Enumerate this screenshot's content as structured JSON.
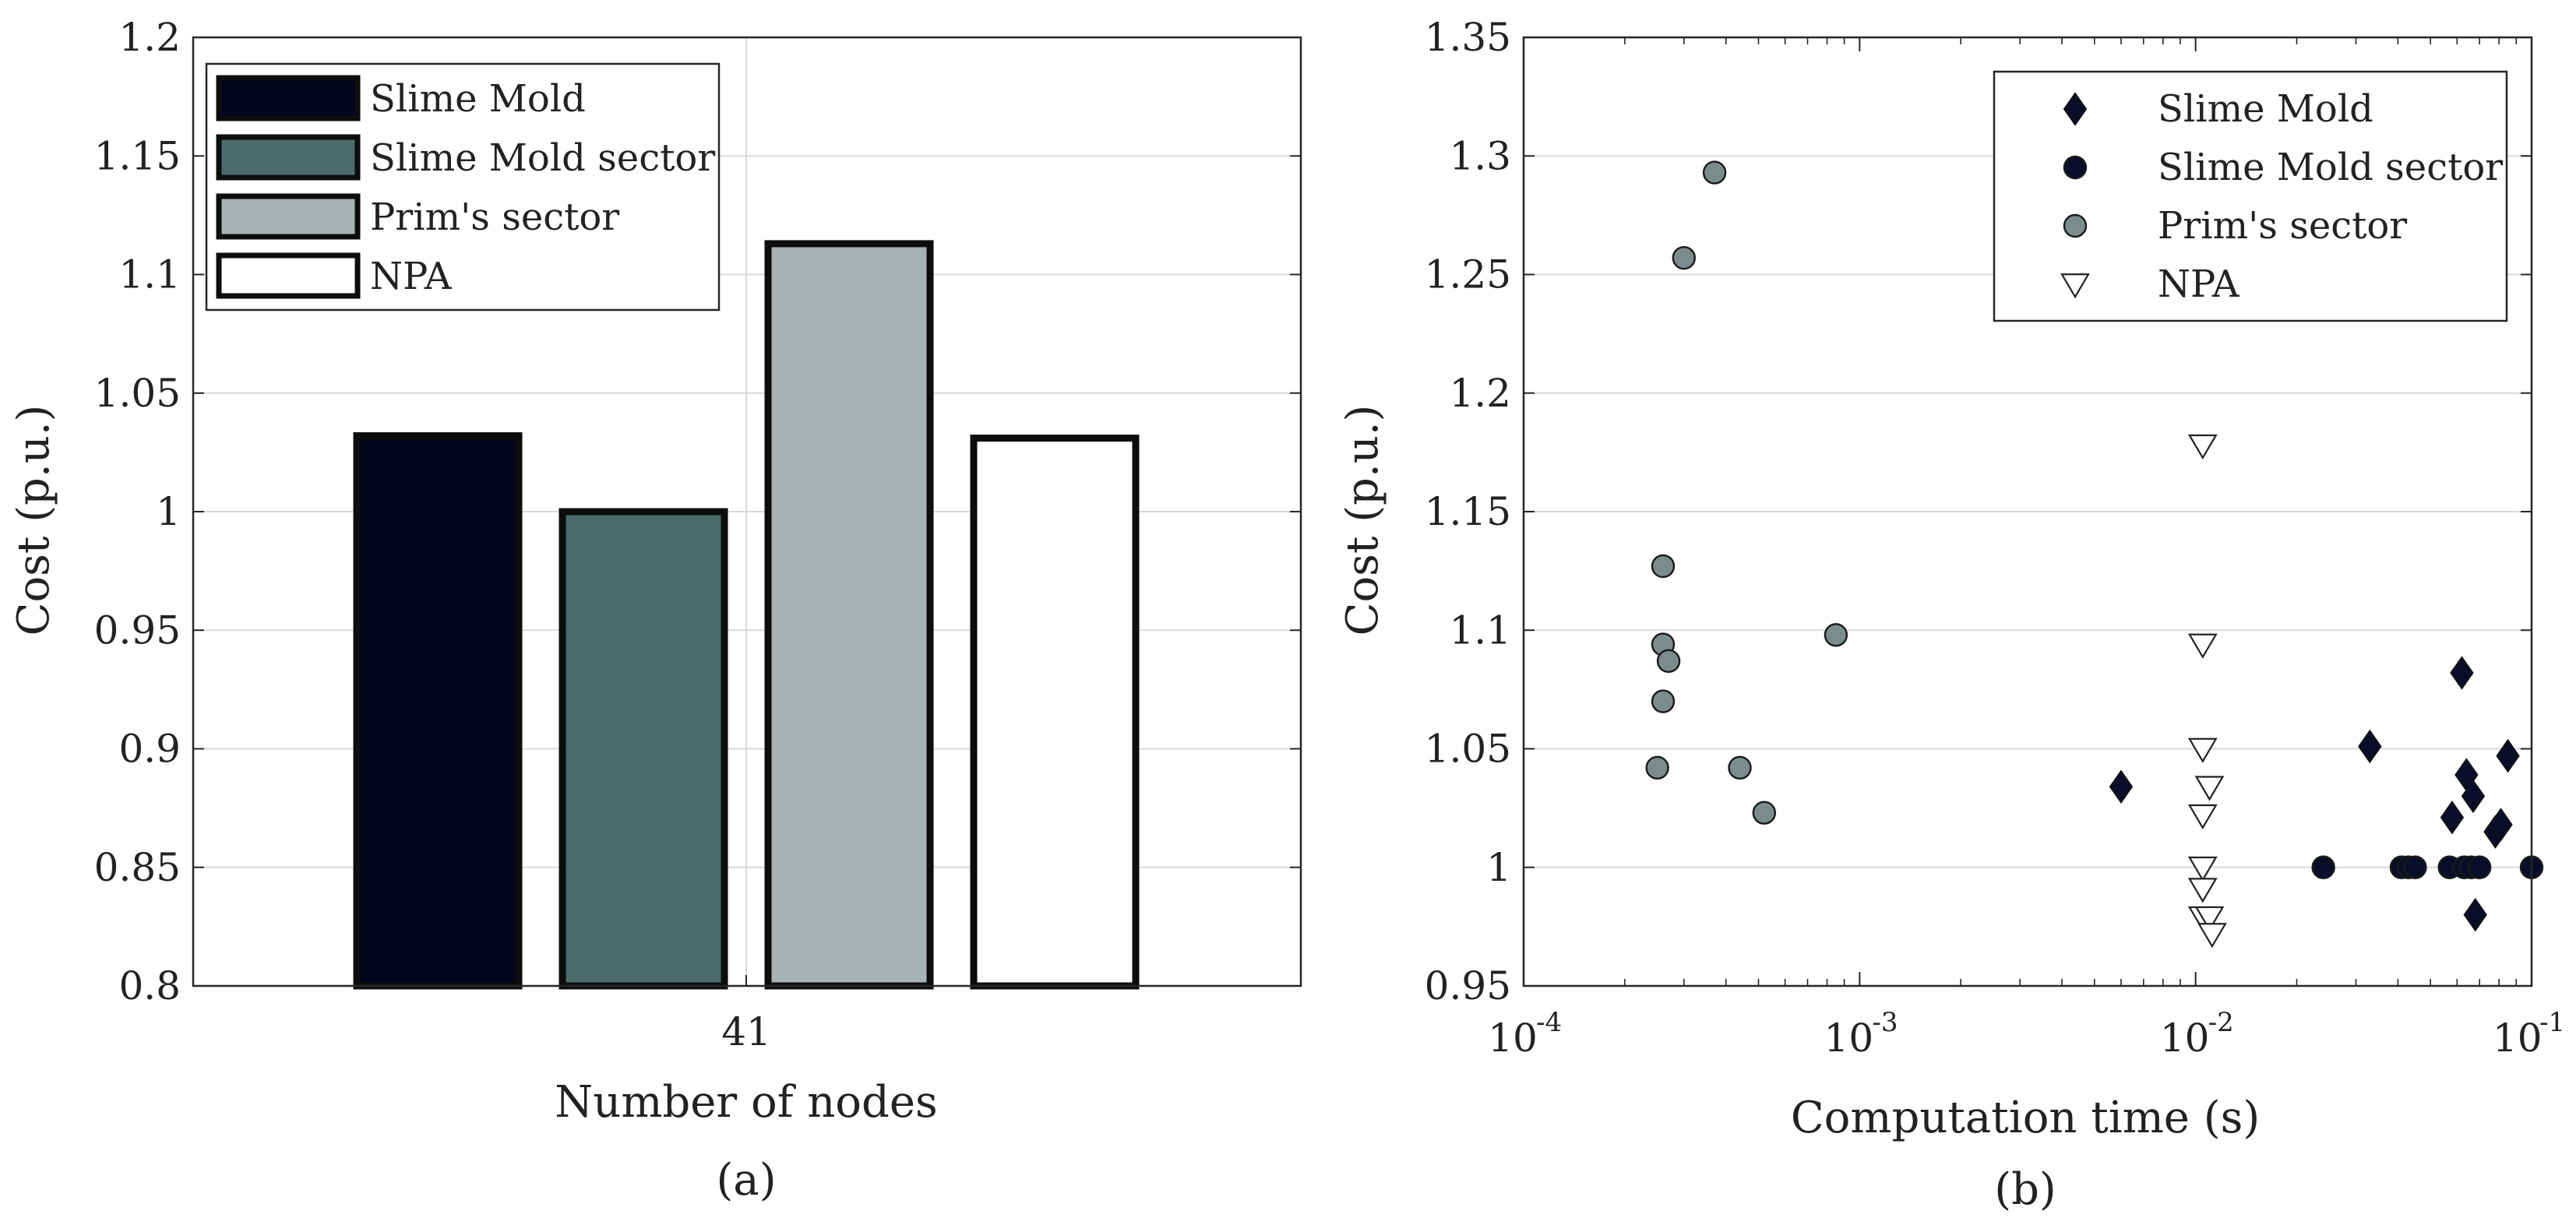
{
  "chart_data": [
    {
      "type": "bar",
      "panel_label": "(a)",
      "categories": [
        "41"
      ],
      "series": [
        {
          "name": "Slime Mold",
          "values": [
            1.032
          ],
          "color": "#03061c"
        },
        {
          "name": "Slime Mold sector",
          "values": [
            1.0
          ],
          "color": "#4b6b6a"
        },
        {
          "name": "Prim's sector",
          "values": [
            1.113
          ],
          "color": "#a7b3b2"
        },
        {
          "name": "NPA",
          "values": [
            1.031
          ],
          "color": "#ffffff"
        }
      ],
      "xlabel": "Number of nodes",
      "ylabel": "Cost (p.u.)",
      "ylim": [
        0.8,
        1.2
      ],
      "yticks": [
        "0.8",
        "0.85",
        "0.9",
        "0.95",
        "1",
        "1.05",
        "1.1",
        "1.15",
        "1.2"
      ],
      "ytick_values": [
        0.8,
        0.85,
        0.9,
        0.95,
        1.0,
        1.05,
        1.1,
        1.15,
        1.2
      ],
      "grid": true,
      "legend_position": "top-left"
    },
    {
      "type": "scatter",
      "panel_label": "(b)",
      "xscale": "log",
      "xlabel": "Computation time (s)",
      "ylabel": "Cost (p.u.)",
      "xlim": [
        0.0001,
        0.1
      ],
      "ylim": [
        0.95,
        1.35
      ],
      "xticks": [
        {
          "base": "10",
          "exp": "-4",
          "value": 0.0001
        },
        {
          "base": "10",
          "exp": "-3",
          "value": 0.001
        },
        {
          "base": "10",
          "exp": "-2",
          "value": 0.01
        },
        {
          "base": "10",
          "exp": "-1",
          "value": 0.1
        }
      ],
      "yticks": [
        "0.95",
        "1",
        "1.05",
        "1.1",
        "1.15",
        "1.2",
        "1.25",
        "1.3",
        "1.35"
      ],
      "ytick_values": [
        0.95,
        1.0,
        1.05,
        1.1,
        1.15,
        1.2,
        1.25,
        1.3,
        1.35
      ],
      "grid": true,
      "legend_position": "top-right",
      "series": [
        {
          "name": "Slime Mold",
          "marker": "diamond",
          "color": "#0a0d2a",
          "points": [
            [
              0.006,
              1.034
            ],
            [
              0.033,
              1.051
            ],
            [
              0.058,
              1.021
            ],
            [
              0.062,
              1.082
            ],
            [
              0.064,
              1.039
            ],
            [
              0.067,
              1.03
            ],
            [
              0.068,
              0.98
            ],
            [
              0.078,
              1.015
            ],
            [
              0.081,
              1.018
            ],
            [
              0.085,
              1.047
            ]
          ]
        },
        {
          "name": "Slime Mold sector",
          "marker": "circle",
          "color": "#0a0d2a",
          "points": [
            [
              0.024,
              1.0
            ],
            [
              0.041,
              1.0
            ],
            [
              0.043,
              1.0
            ],
            [
              0.045,
              1.0
            ],
            [
              0.057,
              1.0
            ],
            [
              0.063,
              1.0
            ],
            [
              0.066,
              1.0
            ],
            [
              0.07,
              1.0
            ],
            [
              0.1,
              1.0
            ]
          ]
        },
        {
          "name": "Prim's sector",
          "marker": "circle",
          "color": "#7a8c8b",
          "points": [
            [
              0.00025,
              1.042
            ],
            [
              0.00026,
              1.07
            ],
            [
              0.00026,
              1.094
            ],
            [
              0.00026,
              1.127
            ],
            [
              0.00027,
              1.087
            ],
            [
              0.0003,
              1.257
            ],
            [
              0.00037,
              1.293
            ],
            [
              0.00044,
              1.042
            ],
            [
              0.00052,
              1.023
            ],
            [
              0.00085,
              1.098
            ]
          ]
        },
        {
          "name": "NPA",
          "marker": "triangle-down",
          "color": "#ffffff",
          "points": [
            [
              0.0105,
              1.178
            ],
            [
              0.0105,
              1.094
            ],
            [
              0.0105,
              1.05
            ],
            [
              0.011,
              1.034
            ],
            [
              0.0105,
              1.022
            ],
            [
              0.0105,
              1.0
            ],
            [
              0.0105,
              0.991
            ],
            [
              0.0105,
              0.979
            ],
            [
              0.011,
              0.979
            ],
            [
              0.0112,
              0.972
            ]
          ]
        }
      ]
    }
  ]
}
